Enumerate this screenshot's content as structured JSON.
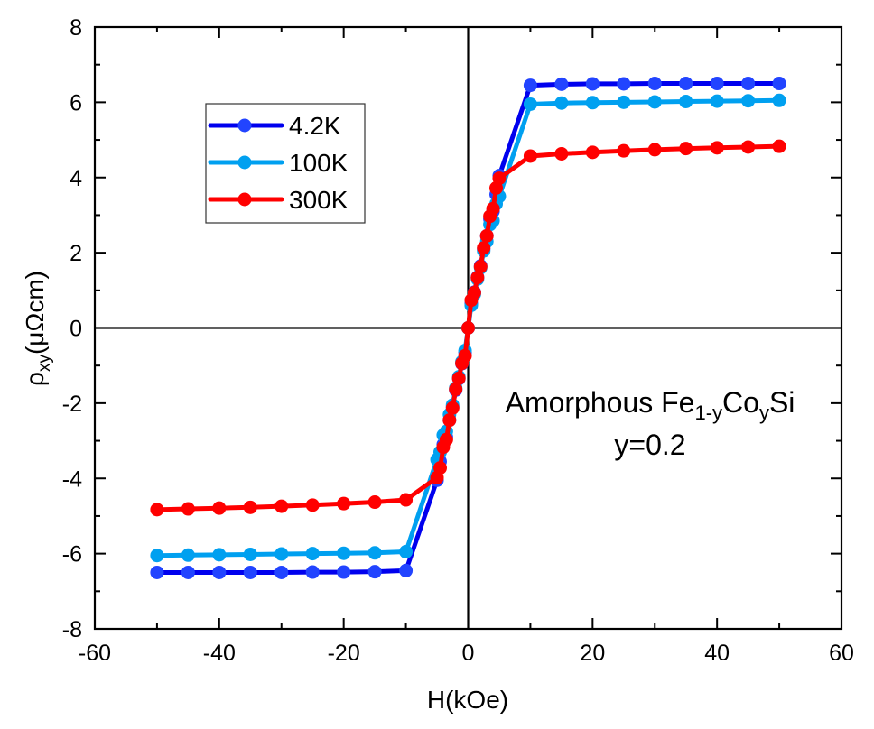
{
  "chart_data": {
    "type": "line",
    "title": "",
    "xlabel": "H(kOe)",
    "ylabel_main": "ρ",
    "ylabel_sub": "xy",
    "ylabel_unit": "(μΩcm)",
    "xlim": [
      -60,
      60
    ],
    "ylim": [
      -8,
      8
    ],
    "xticks": [
      -60,
      -40,
      -20,
      0,
      20,
      40,
      60
    ],
    "xtick_labels": [
      "-60",
      "-40",
      "-20",
      "0",
      "20",
      "40",
      "60"
    ],
    "xminor": [
      -50,
      -30,
      -10,
      10,
      30,
      50
    ],
    "yticks": [
      -8,
      -6,
      -4,
      -2,
      0,
      2,
      4,
      6,
      8
    ],
    "ytick_labels": [
      "-8",
      "-6",
      "-4",
      "-2",
      "0",
      "2",
      "4",
      "6",
      "8"
    ],
    "yminor": [
      -7,
      -5,
      -3,
      -1,
      1,
      3,
      5,
      7
    ],
    "zero_lines": true,
    "grid": false,
    "legend_position": "top-left",
    "series": [
      {
        "name": "4.2K",
        "line_color": "#0000ee",
        "marker_color": "#2244ff",
        "x": [
          -50,
          -45,
          -40,
          -35,
          -30,
          -25,
          -20,
          -15,
          -10,
          -5,
          -4.5,
          -4,
          -3.5,
          -3,
          -2.5,
          -2,
          -1.5,
          -1,
          -0.5,
          0,
          0.5,
          1,
          1.5,
          2,
          2.5,
          3,
          3.5,
          4,
          4.5,
          5,
          10,
          15,
          20,
          25,
          30,
          35,
          40,
          45,
          50
        ],
        "y": [
          -6.5,
          -6.5,
          -6.5,
          -6.5,
          -6.5,
          -6.49,
          -6.49,
          -6.48,
          -6.45,
          -4.05,
          -3.55,
          -3.1,
          -2.9,
          -2.45,
          -2.1,
          -1.65,
          -1.35,
          -0.95,
          -0.65,
          0,
          0.65,
          0.95,
          1.35,
          1.65,
          2.1,
          2.45,
          2.9,
          3.1,
          3.55,
          4.05,
          6.45,
          6.48,
          6.49,
          6.49,
          6.5,
          6.5,
          6.5,
          6.5,
          6.5
        ]
      },
      {
        "name": "100K",
        "line_color": "#00a0f0",
        "marker_color": "#00a0f0",
        "x": [
          -50,
          -45,
          -40,
          -35,
          -30,
          -25,
          -20,
          -15,
          -10,
          -5,
          -4.5,
          -4,
          -3.5,
          -3,
          -2.5,
          -2,
          -1.5,
          -1,
          -0.5,
          0,
          0.5,
          1,
          1.5,
          2,
          2.5,
          3,
          3.5,
          4,
          4.5,
          5,
          10,
          15,
          20,
          25,
          30,
          35,
          40,
          45,
          50
        ],
        "y": [
          -6.05,
          -6.04,
          -6.03,
          -6.02,
          -6.01,
          -6.0,
          -5.99,
          -5.98,
          -5.95,
          -3.5,
          -3.3,
          -2.85,
          -2.75,
          -2.3,
          -2.05,
          -1.6,
          -1.3,
          -0.9,
          -0.6,
          0,
          0.6,
          0.9,
          1.3,
          1.6,
          2.05,
          2.3,
          2.75,
          2.85,
          3.3,
          3.5,
          5.95,
          5.98,
          5.99,
          6.0,
          6.01,
          6.02,
          6.03,
          6.04,
          6.05
        ]
      },
      {
        "name": "300K",
        "line_color": "#ff0000",
        "marker_color": "#ff0000",
        "x": [
          -50,
          -45,
          -40,
          -35,
          -30,
          -25,
          -20,
          -15,
          -10,
          -5,
          -4.5,
          -4,
          -3.5,
          -3,
          -2.5,
          -2,
          -1.5,
          -1,
          -0.5,
          0,
          0.5,
          1,
          1.5,
          2,
          2.5,
          3,
          3.5,
          4,
          4.5,
          5,
          10,
          15,
          20,
          25,
          30,
          35,
          40,
          45,
          50
        ],
        "y": [
          -4.83,
          -4.81,
          -4.79,
          -4.77,
          -4.74,
          -4.71,
          -4.67,
          -4.63,
          -4.57,
          -3.98,
          -3.72,
          -3.17,
          -2.97,
          -2.45,
          -2.13,
          -1.63,
          -1.34,
          -0.94,
          -0.74,
          0,
          0.74,
          0.94,
          1.34,
          1.63,
          2.13,
          2.45,
          2.97,
          3.17,
          3.72,
          3.98,
          4.57,
          4.63,
          4.67,
          4.71,
          4.74,
          4.77,
          4.79,
          4.81,
          4.83
        ]
      }
    ],
    "annotation": {
      "line1_prefix": "Amorphous Fe",
      "line1_sub1": "1-y",
      "line1_mid": "Co",
      "line1_sub2": "y",
      "line1_suffix": "Si",
      "line2": "y=0.2"
    }
  }
}
